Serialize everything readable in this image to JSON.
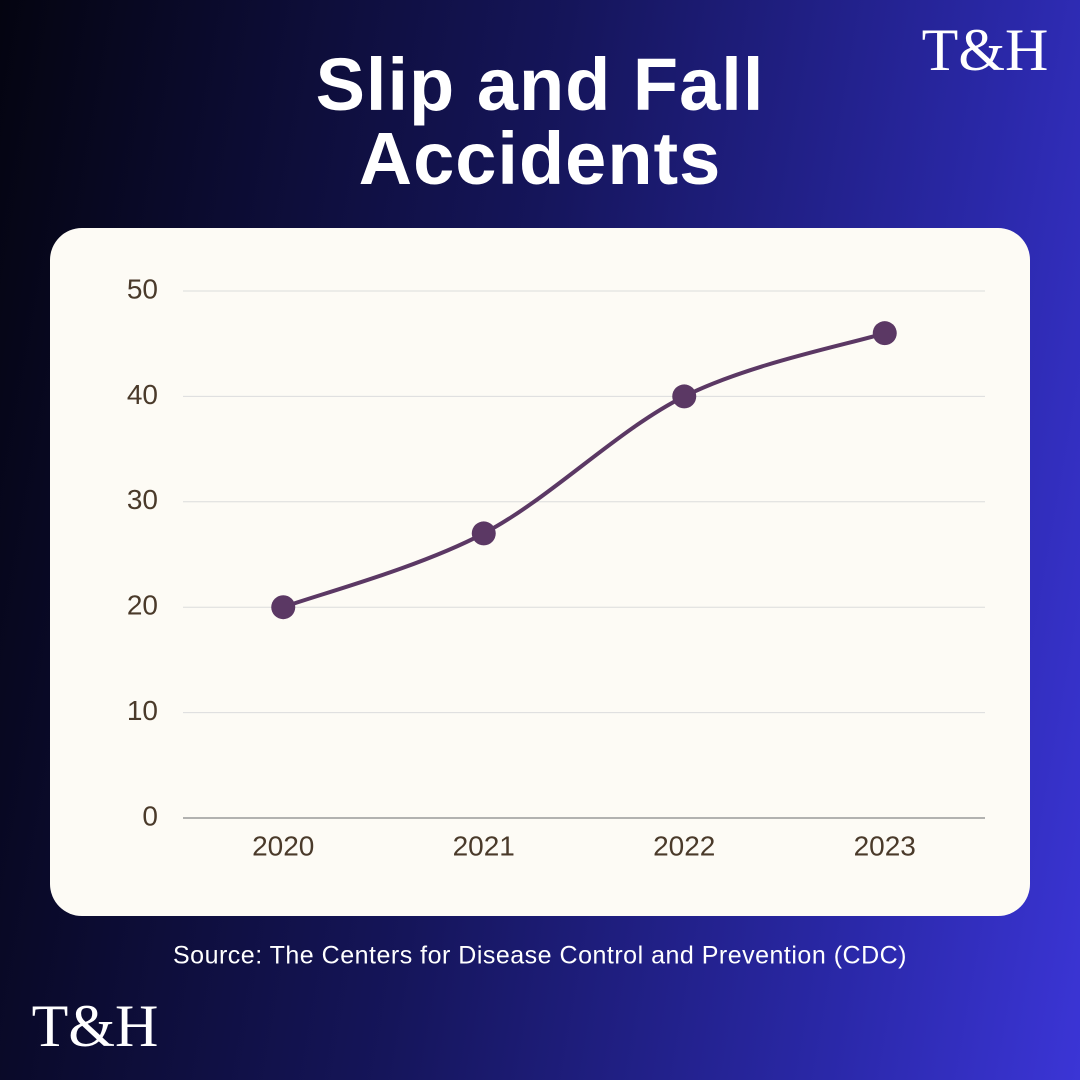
{
  "chart_data": {
    "type": "line",
    "title": "Slip and Fall Accidents",
    "categories": [
      "2020",
      "2021",
      "2022",
      "2023"
    ],
    "values": [
      20,
      27,
      40,
      46
    ],
    "color": "#5b3864",
    "ylim": [
      0,
      50
    ],
    "yticks": [
      0,
      10,
      20,
      30,
      40,
      50
    ],
    "grid": true,
    "source": "Source: The Centers for Disease Control and Prevention (CDC)",
    "logo": "T&H"
  }
}
